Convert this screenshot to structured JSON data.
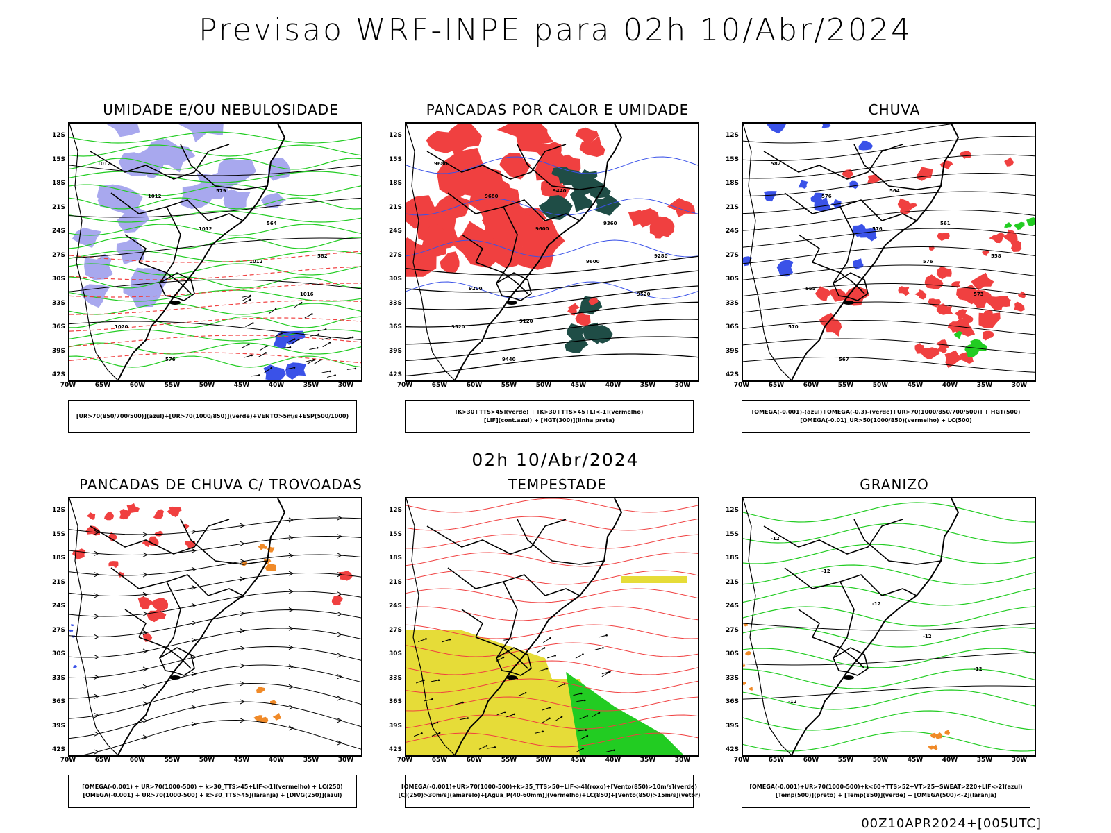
{
  "header": {
    "title": "Previsao WRF-INPE  para 02h 10/Abr/2024",
    "subtitle": "02h 10/Abr/2024",
    "footer": "00Z10APR2024+[005UTC]"
  },
  "axes": {
    "lat_labels": [
      "12S",
      "15S",
      "18S",
      "21S",
      "24S",
      "27S",
      "30S",
      "33S",
      "36S",
      "39S",
      "42S"
    ],
    "lon_labels": [
      "70W",
      "65W",
      "60W",
      "55W",
      "50W",
      "45W",
      "40W",
      "35W",
      "30W"
    ]
  },
  "colors": {
    "red": "#f04040",
    "green": "#22cc22",
    "blue": "#3a52e8",
    "lavender": "#a8a8ee",
    "orange": "#f08a28",
    "yellow": "#e6dc38",
    "darkteal": "#1f4d46"
  },
  "panels": [
    {
      "title": "UMIDADE E/OU NEBULOSIDADE",
      "legend": [
        "[UR>70(850/700/500)](azul)+[UR>70(1000/850)](verde)+VENTO>5m/s+ESP(500/1000)"
      ],
      "contour_labels": [
        "1012",
        "1012",
        "1012",
        "1012",
        "1016",
        "1020",
        "576",
        "579",
        "564",
        "582"
      ]
    },
    {
      "title": "PANCADAS POR CALOR E UMIDADE",
      "legend": [
        "[K>30+TTS>45](verde) + [K>30+TTS>45+LI<-1](vermelho)",
        "[LIF](cont.azul) + [HGT(300)](linha preta)"
      ],
      "contour_labels": [
        "9680",
        "9680",
        "9600",
        "9600",
        "9520",
        "9520",
        "9440",
        "9440",
        "9360",
        "9280",
        "9200",
        "9120"
      ]
    },
    {
      "title": "CHUVA",
      "legend": [
        "[OMEGA(-0.001)-(azul)+OMEGA(-0.3)-(verde)+UR>70(1000/850/700/500)] + HGT(500)",
        "[OMEGA(-0.01)_UR>50(1000/850)(vermelho) + LC(500)"
      ],
      "contour_labels": [
        "582",
        "576",
        "576",
        "576",
        "573",
        "570",
        "567",
        "564",
        "561",
        "558",
        "555"
      ]
    },
    {
      "title": "PANCADAS DE CHUVA C/ TROVOADAS",
      "legend": [
        "[OMEGA(-0.001) + UR>70(1000-500) + k>30_TTS>45+LIF<-1](vermelho) + LC(250)",
        "[OMEGA(-0.001) + UR>70(1000-500) + k>30_TTS>45](laranja) + [DIVG(250)](azul)"
      ],
      "contour_labels": []
    },
    {
      "title": "TEMPESTADE",
      "legend": [
        "[OMEGA(-0.001)+UR>70(1000-500)+k>35_TTS>50+LIF<-4](roxo)+[Vento(850)>10m/s](verde)",
        "[CJ(250)>30m/s](amarelo)+[Agua_P(40-60mm)](vermelho)+LC(850)+[Vento(850)>15m/s](vetor)"
      ],
      "contour_labels": []
    },
    {
      "title": "GRANIZO",
      "legend": [
        "[OMEGA(-0.001)+UR>70(1000-500)+k<60+TTS>52+VT>25+SWEAT>220+LIF<-2](azul)",
        "[Temp(500)](preto) + [Temp(850)](verde) + [OMEGA(500)<-2](laranja)"
      ],
      "contour_labels": [
        "-12",
        "-12",
        "-12",
        "-12",
        "-12",
        "-12"
      ]
    }
  ]
}
